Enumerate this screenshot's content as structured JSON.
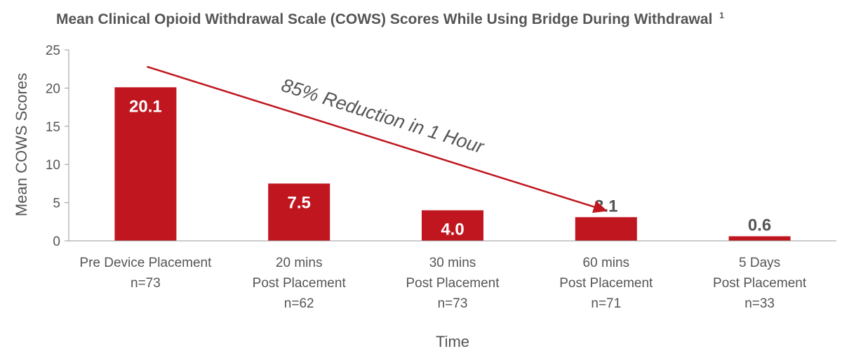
{
  "chart_data": {
    "type": "bar",
    "title": "Mean Clinical Opioid Withdrawal Scale (COWS) Scores While Using Bridge During Withdrawal",
    "title_superscript": "1",
    "xlabel": "Time",
    "ylabel": "Mean COWS Scores",
    "ylim": [
      0,
      25
    ],
    "yticks": [
      0,
      5,
      10,
      15,
      20,
      25
    ],
    "grid": false,
    "categories": [
      [
        "Pre Device Placement",
        "n=73"
      ],
      [
        "20 mins",
        "Post Placement",
        "n=62"
      ],
      [
        "30 mins",
        "Post Placement",
        "n=73"
      ],
      [
        "60 mins",
        "Post Placement",
        "n=71"
      ],
      [
        "5 Days",
        "Post Placement",
        "n=33"
      ]
    ],
    "values": [
      20.1,
      7.5,
      4.0,
      3.1,
      0.6
    ],
    "value_labels": [
      "20.1",
      "7.5",
      "4.0",
      "3.1",
      "0.6"
    ],
    "bar_color": "#c0161f",
    "annotation": {
      "text": "85% Reduction in 1 Hour",
      "arrow_from": {
        "category_index": 0,
        "value": 22.8
      },
      "arrow_to": {
        "category_index": 3,
        "value": 3.9
      },
      "arrow_color": "#c0161f"
    }
  }
}
